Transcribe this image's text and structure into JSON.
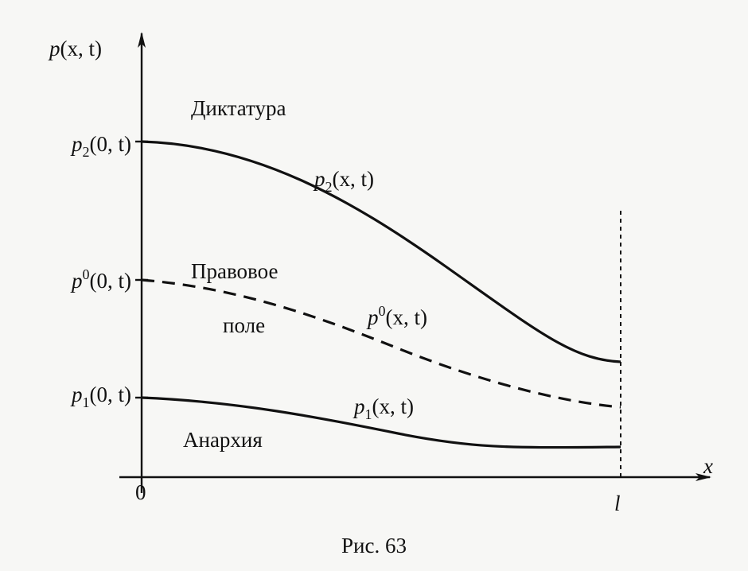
{
  "figure": {
    "y_axis_label": {
      "base": "p",
      "args": "(x, t)"
    },
    "x_axis_label": "x",
    "origin_label": "0",
    "x_end_label": "l",
    "y_labels": [
      {
        "base": "p",
        "sub": "2",
        "args": "(0, t)"
      },
      {
        "base": "p",
        "sup": "0",
        "args": "(0, t)"
      },
      {
        "base": "p",
        "sub": "1",
        "args": "(0, t)"
      }
    ],
    "regions": [
      "Диктатура",
      "Правовое",
      "поле",
      "Анархия"
    ],
    "curve_labels": [
      {
        "base": "p",
        "sub": "2",
        "args": "(x, t)"
      },
      {
        "base": "p",
        "sup": "0",
        "args": "(x, t)"
      },
      {
        "base": "p",
        "sub": "1",
        "args": "(x, t)"
      }
    ],
    "caption": "Рис. 63"
  }
}
